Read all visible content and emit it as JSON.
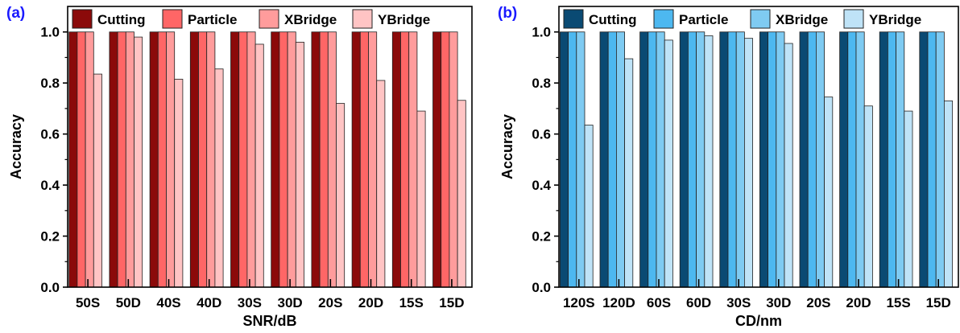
{
  "series_names": [
    "Cutting",
    "Particle",
    "XBridge",
    "YBridge"
  ],
  "chart_data": [
    {
      "type": "bar",
      "panel_label": "(a)",
      "xlabel": "SNR/dB",
      "ylabel": "Accuracy",
      "ylim": [
        0,
        1.1
      ],
      "yticks": [
        "0.0",
        "0.2",
        "0.4",
        "0.6",
        "0.8",
        "1.0"
      ],
      "legend_position": "top",
      "categories": [
        "50S",
        "50D",
        "40S",
        "40D",
        "30S",
        "30D",
        "20S",
        "20D",
        "15S",
        "15D"
      ],
      "colors": [
        "#8b0a0a",
        "#ff6666",
        "#ff9c9c",
        "#ffc4c4"
      ],
      "series": [
        {
          "name": "Cutting",
          "values": [
            1,
            1,
            1,
            1,
            1,
            1,
            1,
            1,
            1,
            1
          ]
        },
        {
          "name": "Particle",
          "values": [
            1,
            1,
            1,
            1,
            1,
            1,
            1,
            1,
            1,
            1
          ]
        },
        {
          "name": "XBridge",
          "values": [
            1,
            1,
            1,
            1,
            1,
            1,
            1,
            1,
            1,
            1
          ]
        },
        {
          "name": "YBridge",
          "values": [
            0.835,
            0.98,
            0.815,
            0.855,
            0.952,
            0.96,
            0.72,
            0.81,
            0.69,
            0.732
          ]
        }
      ]
    },
    {
      "type": "bar",
      "panel_label": "(b)",
      "xlabel": "CD/nm",
      "ylabel": "Accuracy",
      "ylim": [
        0,
        1.1
      ],
      "yticks": [
        "0.0",
        "0.2",
        "0.4",
        "0.6",
        "0.8",
        "1.0"
      ],
      "legend_position": "top",
      "categories": [
        "120S",
        "120D",
        "60S",
        "60D",
        "30S",
        "30D",
        "20S",
        "20D",
        "15S",
        "15D"
      ],
      "colors": [
        "#0a4a73",
        "#4db8f0",
        "#7fcbf2",
        "#bfe3f7"
      ],
      "series": [
        {
          "name": "Cutting",
          "values": [
            1,
            1,
            1,
            1,
            1,
            1,
            1,
            1,
            1,
            1
          ]
        },
        {
          "name": "Particle",
          "values": [
            1,
            1,
            1,
            1,
            1,
            1,
            1,
            1,
            1,
            1
          ]
        },
        {
          "name": "XBridge",
          "values": [
            1,
            1,
            1,
            1,
            1,
            1,
            1,
            1,
            1,
            1
          ]
        },
        {
          "name": "YBridge",
          "values": [
            0.635,
            0.895,
            0.968,
            0.985,
            0.975,
            0.955,
            0.745,
            0.71,
            0.69,
            0.73
          ]
        }
      ]
    }
  ]
}
